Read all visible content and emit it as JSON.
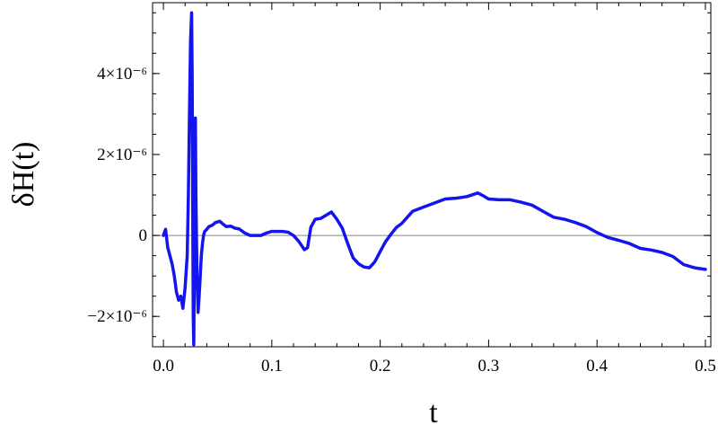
{
  "chart_data": {
    "type": "line",
    "xlabel": "t",
    "ylabel": "δH(t)",
    "xlim": [
      -0.01,
      0.505
    ],
    "ylim": [
      -2.75e-06,
      5.75e-06
    ],
    "grid": false,
    "zero_line": true,
    "series_color": "#1414ee",
    "x_ticks": [
      {
        "value": 0.0,
        "label": "0.0"
      },
      {
        "value": 0.1,
        "label": "0.1"
      },
      {
        "value": 0.2,
        "label": "0.2"
      },
      {
        "value": 0.3,
        "label": "0.3"
      },
      {
        "value": 0.4,
        "label": "0.4"
      },
      {
        "value": 0.5,
        "label": "0.5"
      }
    ],
    "y_ticks": [
      {
        "value": -2e-06,
        "label": "−2×10⁻⁶"
      },
      {
        "value": 0,
        "label": "0"
      },
      {
        "value": 2e-06,
        "label": "2×10⁻⁶"
      },
      {
        "value": 4e-06,
        "label": "4×10⁻⁶"
      }
    ],
    "series": [
      {
        "x": [
          0.0,
          0.002,
          0.004,
          0.006,
          0.008,
          0.01,
          0.012,
          0.014,
          0.016,
          0.018,
          0.02,
          0.022,
          0.023,
          0.024,
          0.025,
          0.026,
          0.0265,
          0.027,
          0.0275,
          0.028,
          0.0285,
          0.029,
          0.0295,
          0.03,
          0.031,
          0.032,
          0.033,
          0.034,
          0.035,
          0.036,
          0.037,
          0.038,
          0.04,
          0.042,
          0.045,
          0.048,
          0.052,
          0.055,
          0.058,
          0.062,
          0.066,
          0.07,
          0.075,
          0.08,
          0.085,
          0.09,
          0.095,
          0.1,
          0.105,
          0.11,
          0.115,
          0.12,
          0.125,
          0.13,
          0.133,
          0.136,
          0.14,
          0.145,
          0.15,
          0.155,
          0.16,
          0.165,
          0.17,
          0.175,
          0.18,
          0.185,
          0.19,
          0.195,
          0.2,
          0.205,
          0.21,
          0.215,
          0.22,
          0.225,
          0.23,
          0.24,
          0.25,
          0.26,
          0.27,
          0.28,
          0.29,
          0.295,
          0.3,
          0.31,
          0.32,
          0.33,
          0.34,
          0.35,
          0.36,
          0.37,
          0.38,
          0.39,
          0.4,
          0.41,
          0.42,
          0.43,
          0.44,
          0.45,
          0.46,
          0.47,
          0.48,
          0.49,
          0.5
        ],
        "y": [
          0.0,
          1.5e-07,
          -3e-07,
          -5e-07,
          -7e-07,
          -1e-06,
          -1.4e-06,
          -1.6e-06,
          -1.5e-06,
          -1.8e-06,
          -1.3e-06,
          -5e-07,
          1e-06,
          3e-06,
          4.8e-06,
          5.5e-06,
          4e-06,
          1e-06,
          -2e-06,
          -2.7e-06,
          -1e-06,
          1.5e-06,
          2.9e-06,
          1e-06,
          -1e-06,
          -1.9e-06,
          -1.5e-06,
          -1e-06,
          -5e-07,
          -2e-07,
          0.0,
          1e-07,
          1.5e-07,
          2.2e-07,
          2.5e-07,
          3.2e-07,
          3.5e-07,
          2.8e-07,
          2.2e-07,
          2.3e-07,
          1.8e-07,
          1.6e-07,
          6e-08,
          0.0,
          0.0,
          0.0,
          6e-08,
          1e-07,
          1e-07,
          1e-07,
          8e-08,
          0.0,
          -1.5e-07,
          -3.5e-07,
          -3e-07,
          2e-07,
          4e-07,
          4.2e-07,
          5e-07,
          5.8e-07,
          4e-07,
          1.8e-07,
          -2e-07,
          -5.5e-07,
          -7e-07,
          -7.8e-07,
          -8e-07,
          -6.5e-07,
          -4e-07,
          -1.5e-07,
          3e-08,
          2e-07,
          3e-07,
          4.5e-07,
          6e-07,
          7e-07,
          8e-07,
          9e-07,
          9.2e-07,
          9.6e-07,
          1.05e-06,
          9.8e-07,
          9e-07,
          8.8e-07,
          8.8e-07,
          8.2e-07,
          7.5e-07,
          6e-07,
          4.5e-07,
          4e-07,
          3.2e-07,
          2.2e-07,
          7e-08,
          -5e-08,
          -1.2e-07,
          -2e-07,
          -3.2e-07,
          -3.6e-07,
          -4.2e-07,
          -5.2e-07,
          -7.2e-07,
          -8e-07,
          -8.4e-07
        ]
      }
    ]
  }
}
